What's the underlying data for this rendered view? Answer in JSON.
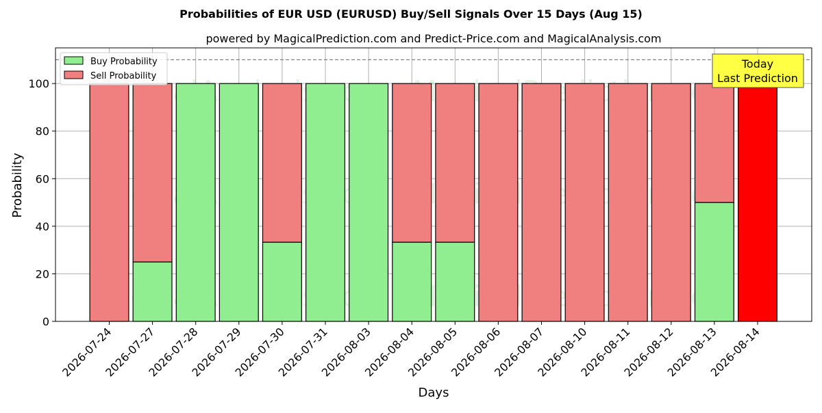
{
  "chart_data": {
    "type": "bar",
    "stacked": true,
    "title": "Probabilities of EUR USD (EURUSD) Buy/Sell Signals Over 15 Days (Aug 15)",
    "subtitle": "powered by MagicalPrediction.com and Predict-Price.com and MagicalAnalysis.com",
    "xlabel": "Days",
    "ylabel": "Probability",
    "ylim": [
      0,
      115
    ],
    "yticks": [
      0,
      20,
      40,
      60,
      80,
      100
    ],
    "grid": true,
    "legend_position": "top-left",
    "reference_line": 110,
    "categories": [
      "2026-07-24",
      "2026-07-27",
      "2026-07-28",
      "2026-07-29",
      "2026-07-30",
      "2026-07-31",
      "2026-08-03",
      "2026-08-04",
      "2026-08-05",
      "2026-08-06",
      "2026-08-07",
      "2026-08-10",
      "2026-08-11",
      "2026-08-12",
      "2026-08-13",
      "2026-08-14"
    ],
    "series": [
      {
        "name": "Buy Probability",
        "color": "#90ee90",
        "values": [
          0,
          25,
          100,
          100,
          33.3,
          100,
          100,
          33.3,
          33.3,
          0,
          0,
          0,
          0,
          0,
          50,
          0
        ]
      },
      {
        "name": "Sell Probability",
        "color": "#f08080",
        "values": [
          100,
          75,
          0,
          0,
          66.7,
          0,
          0,
          66.7,
          66.7,
          100,
          100,
          100,
          100,
          100,
          50,
          100
        ]
      }
    ],
    "highlight": {
      "category": "2026-08-14",
      "color": "#ff0000"
    },
    "annotation": {
      "line1": "Today",
      "line2": "Last Prediction",
      "background": "#ffff44"
    },
    "watermarks": [
      "MagicalAnalysis.com",
      "MagicalPrediction.com"
    ]
  }
}
